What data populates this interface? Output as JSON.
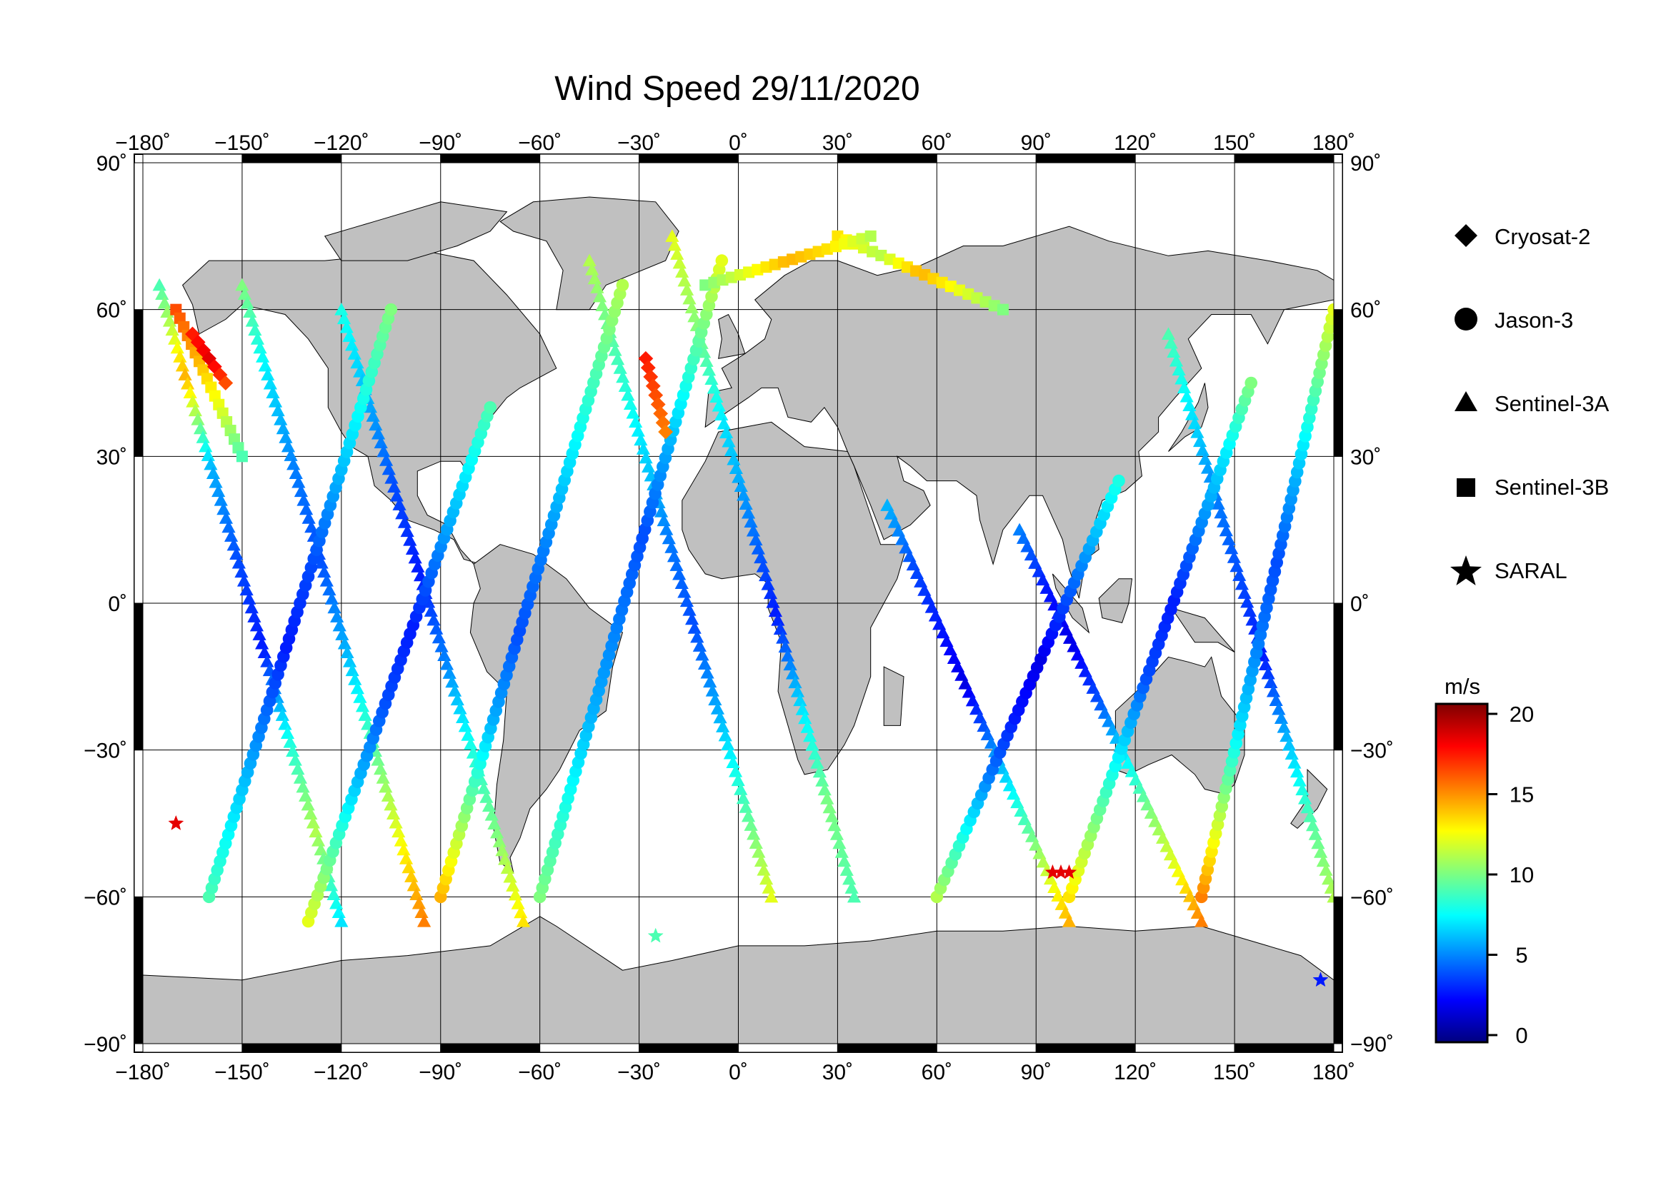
{
  "title": "Wind Speed 29/11/2020",
  "map": {
    "lon_range": [
      -180,
      180
    ],
    "lat_range": [
      -90,
      90
    ],
    "lon_ticks": [
      -180,
      -150,
      -120,
      -90,
      -60,
      -30,
      0,
      30,
      60,
      90,
      120,
      150,
      180
    ],
    "lat_ticks": [
      -90,
      -60,
      -30,
      0,
      30,
      60,
      90
    ],
    "lon_tick_labels": [
      "−180˚",
      "−150˚",
      "−120˚",
      "−90˚",
      "−60˚",
      "−30˚",
      "0˚",
      "30˚",
      "60˚",
      "90˚",
      "120˚",
      "150˚",
      "180˚"
    ],
    "lat_tick_labels": [
      "−90˚",
      "−60˚",
      "−30˚",
      "0˚",
      "30˚",
      "60˚",
      "90˚"
    ],
    "grid": true,
    "land_color": "#c0c0c0",
    "ocean_color": "#ffffff"
  },
  "legend": {
    "placement": "right",
    "items": [
      {
        "label": "Cryosat-2",
        "symbol": "diamond"
      },
      {
        "label": "Jason-3",
        "symbol": "circle"
      },
      {
        "label": "Sentinel-3A",
        "symbol": "triangle"
      },
      {
        "label": "Sentinel-3B",
        "symbol": "square"
      },
      {
        "label": "SARAL",
        "symbol": "star"
      }
    ]
  },
  "colorbar": {
    "unit": "m/s",
    "range": [
      0,
      20
    ],
    "ticks": [
      0,
      5,
      10,
      15,
      20
    ],
    "tick_labels": [
      "0",
      "5",
      "10",
      "15",
      "20"
    ],
    "colors": [
      "#00007f",
      "#0000ff",
      "#007fff",
      "#00ffff",
      "#7fff7f",
      "#ffff00",
      "#ff7f00",
      "#ff0000",
      "#7f0000"
    ]
  },
  "chart_data": {
    "type": "scatter",
    "title": "Wind Speed 29/11/2020",
    "xlabel": "",
    "ylabel": "",
    "xlim": [
      -180,
      180
    ],
    "ylim": [
      -90,
      90
    ],
    "value_unit": "m/s",
    "value_range": [
      0,
      20
    ],
    "series": [
      {
        "name": "Sentinel-3A",
        "symbol": "triangle",
        "tracks": [
          {
            "lon": [
              -175,
              -120
            ],
            "lat": [
              65,
              -65
            ],
            "speeds": [
              9,
              14,
              6,
              4,
              3,
              8,
              11,
              7
            ]
          },
          {
            "lon": [
              -150,
              -95
            ],
            "lat": [
              65,
              -65
            ],
            "speeds": [
              10,
              7,
              5,
              4,
              6,
              9,
              12,
              15
            ]
          },
          {
            "lon": [
              -120,
              -65
            ],
            "lat": [
              60,
              -65
            ],
            "speeds": [
              8,
              6,
              4,
              3,
              5,
              8,
              10,
              13
            ]
          },
          {
            "lon": [
              -45,
              10
            ],
            "lat": [
              70,
              -60
            ],
            "speeds": [
              11,
              9,
              7,
              5,
              4,
              6,
              9,
              12
            ]
          },
          {
            "lon": [
              -20,
              35
            ],
            "lat": [
              75,
              -60
            ],
            "speeds": [
              12,
              10,
              7,
              5,
              3,
              7,
              10,
              9
            ]
          },
          {
            "lon": [
              45,
              100
            ],
            "lat": [
              20,
              -65
            ],
            "speeds": [
              6,
              4,
              3,
              2,
              5,
              8,
              11,
              14
            ]
          },
          {
            "lon": [
              85,
              140
            ],
            "lat": [
              15,
              -65
            ],
            "speeds": [
              5,
              3,
              2,
              4,
              7,
              10,
              12,
              15
            ]
          },
          {
            "lon": [
              130,
              180
            ],
            "lat": [
              55,
              -60
            ],
            "speeds": [
              9,
              7,
              5,
              4,
              3,
              6,
              9,
              11
            ]
          }
        ]
      },
      {
        "name": "Jason-3",
        "symbol": "circle",
        "tracks": [
          {
            "lon": [
              -160,
              -105
            ],
            "lat": [
              -60,
              60
            ],
            "speeds": [
              9,
              7,
              5,
              3,
              4,
              6,
              8,
              10
            ]
          },
          {
            "lon": [
              -130,
              -75
            ],
            "lat": [
              -65,
              40
            ],
            "speeds": [
              12,
              9,
              6,
              4,
              3,
              5,
              7,
              9
            ]
          },
          {
            "lon": [
              -90,
              -35
            ],
            "lat": [
              -60,
              65
            ],
            "speeds": [
              14,
              10,
              6,
              4,
              5,
              7,
              9,
              11
            ]
          },
          {
            "lon": [
              -60,
              -5
            ],
            "lat": [
              -60,
              70
            ],
            "speeds": [
              10,
              8,
              6,
              5,
              4,
              6,
              9,
              12
            ]
          },
          {
            "lon": [
              60,
              115
            ],
            "lat": [
              -60,
              25
            ],
            "speeds": [
              11,
              8,
              5,
              3,
              2,
              4,
              6,
              8
            ]
          },
          {
            "lon": [
              100,
              155
            ],
            "lat": [
              -60,
              45
            ],
            "speeds": [
              13,
              10,
              7,
              4,
              3,
              5,
              7,
              10
            ]
          },
          {
            "lon": [
              140,
              180
            ],
            "lat": [
              -60,
              60
            ],
            "speeds": [
              15,
              11,
              7,
              5,
              4,
              6,
              9,
              12
            ]
          }
        ]
      },
      {
        "name": "Sentinel-3B",
        "symbol": "square",
        "tracks": [
          {
            "lon": [
              -170,
              -150
            ],
            "lat": [
              60,
              30
            ],
            "speeds": [
              16,
              14,
              12,
              9
            ]
          },
          {
            "lon": [
              30,
              80
            ],
            "lat": [
              75,
              60
            ],
            "speeds": [
              13,
              11,
              14,
              12,
              10
            ]
          },
          {
            "lon": [
              -10,
              40
            ],
            "lat": [
              65,
              75
            ],
            "speeds": [
              10,
              12,
              14,
              13,
              11
            ]
          }
        ]
      },
      {
        "name": "Cryosat-2",
        "symbol": "diamond",
        "tracks": [
          {
            "lon": [
              -28,
              -22
            ],
            "lat": [
              50,
              35
            ],
            "speeds": [
              17,
              16,
              15
            ]
          },
          {
            "lon": [
              -165,
              -155
            ],
            "lat": [
              55,
              45
            ],
            "speeds": [
              17,
              18,
              16
            ]
          }
        ]
      },
      {
        "name": "SARAL",
        "symbol": "star",
        "tracks": [
          {
            "lon": [
              -170,
              -170
            ],
            "lat": [
              -45,
              -45
            ],
            "speeds": [
              18
            ]
          },
          {
            "lon": [
              95,
              100
            ],
            "lat": [
              -55,
              -55
            ],
            "speeds": [
              18
            ]
          },
          {
            "lon": [
              -25,
              -25
            ],
            "lat": [
              -68,
              -68
            ],
            "speeds": [
              9
            ]
          },
          {
            "lon": [
              176,
              176
            ],
            "lat": [
              -77,
              -77
            ],
            "speeds": [
              3
            ]
          }
        ]
      }
    ]
  }
}
